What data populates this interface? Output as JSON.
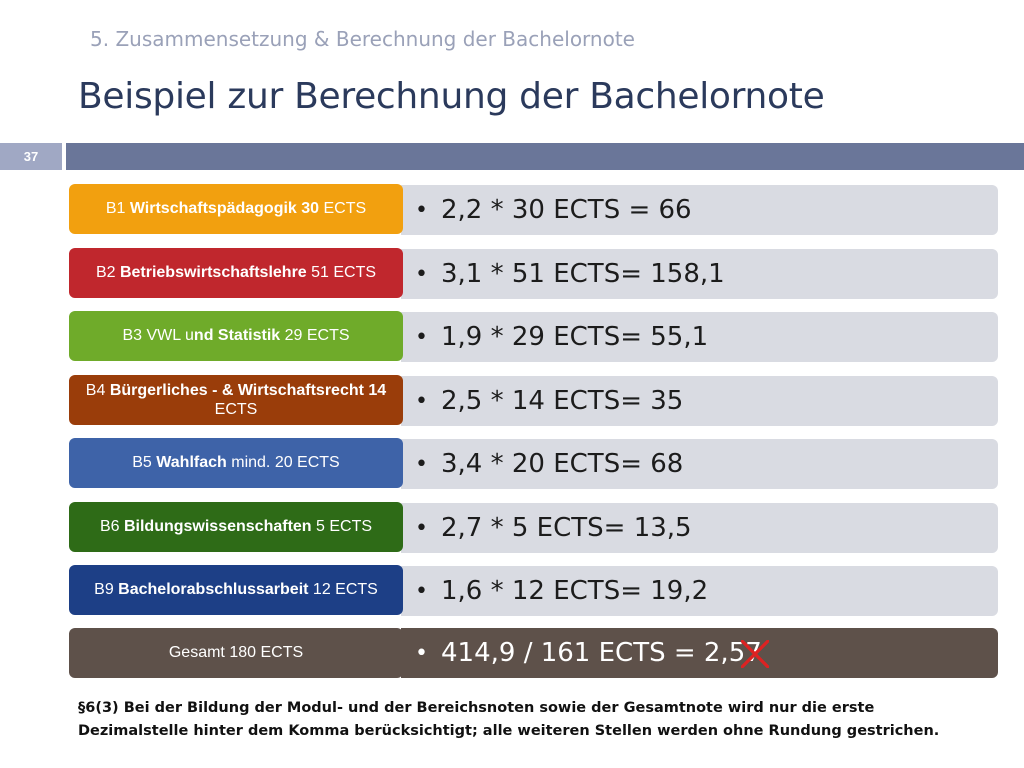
{
  "header": {
    "subtitle": "5. Zusammensetzung & Berechnung der Bachelornote",
    "title": "Beispiel zur Berechnung der Bachelornote",
    "page_number": "37"
  },
  "rows": [
    {
      "color": "#f2a00f",
      "label_parts": [
        [
          "B1 ",
          false
        ],
        [
          "Wirtschaftspädagogik 30",
          true
        ],
        [
          " ECTS",
          false
        ]
      ],
      "calc": "2,2 * 30 ECTS = 66"
    },
    {
      "color": "#c0272d",
      "label_parts": [
        [
          "B2 ",
          false
        ],
        [
          "Betriebswirtschaftslehre",
          true
        ],
        [
          " 51 ECTS",
          false
        ]
      ],
      "calc": "3,1 * 51 ECTS= 158,1"
    },
    {
      "color": "#6fab2a",
      "label_parts": [
        [
          "B3 VWL u",
          false
        ],
        [
          "nd Statistik",
          true
        ],
        [
          " 29 ECTS",
          false
        ]
      ],
      "calc": "1,9 * 29 ECTS= 55,1"
    },
    {
      "color": "#9a3d0a",
      "label_parts": [
        [
          "B4 ",
          false
        ],
        [
          "Bürgerliches - & Wirtschaftsrecht 14",
          true
        ],
        [
          " ECTS",
          false
        ]
      ],
      "calc": "2,5 * 14 ECTS= 35"
    },
    {
      "color": "#3e63a8",
      "label_parts": [
        [
          "B5 ",
          false
        ],
        [
          "Wahlfach",
          true
        ],
        [
          " mind. 20 ECTS",
          false
        ]
      ],
      "calc": "3,4 * 20 ECTS= 68"
    },
    {
      "color": "#2e6b17",
      "label_parts": [
        [
          "B6 ",
          false
        ],
        [
          "Bildungswissenschaften",
          true
        ],
        [
          " 5 ECTS",
          false
        ]
      ],
      "calc": "2,7 * 5 ECTS= 13,5"
    },
    {
      "color": "#1d3f86",
      "label_parts": [
        [
          "B9 ",
          false
        ],
        [
          "Bachelorabschlussarbeit",
          true
        ],
        [
          " 12 ECTS",
          false
        ]
      ],
      "calc": "1,6 * 12 ECTS= 19,2"
    }
  ],
  "total": {
    "color": "#5e514a",
    "label": "Gesamt 180 ECTS",
    "calc_main": "414,9 / 161 ECTS = 2,5",
    "calc_struck": "7"
  },
  "footnote": "§6(3) Bei der Bildung der Modul- und der Bereichsnoten sowie der Gesamtnote wird nur die erste Dezimalstelle hinter dem Komma berücksichtigt; alle weiteren Stellen werden ohne Rundung gestrichen."
}
